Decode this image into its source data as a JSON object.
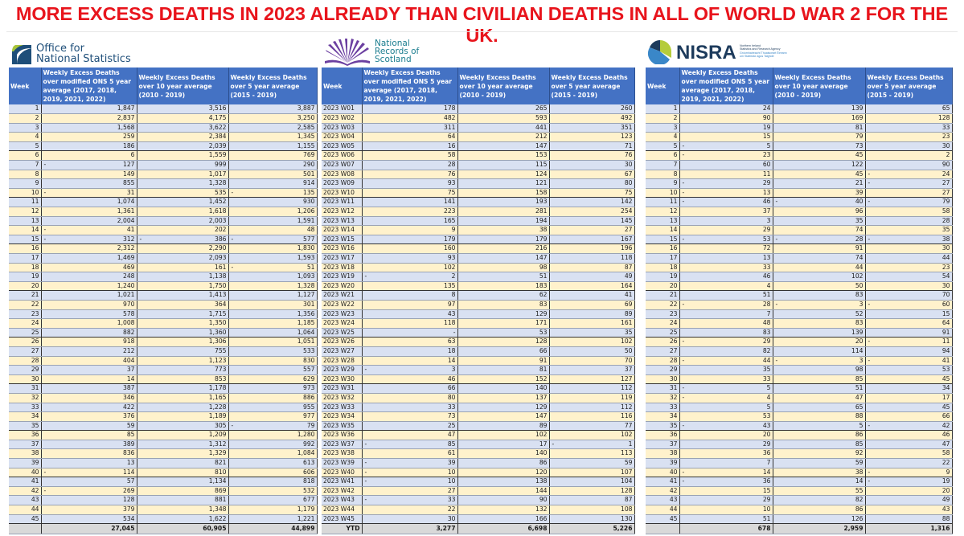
{
  "title": "MORE EXCESS DEATHS IN 2023 ALREADY THAN CIVILIAN DEATHS IN ALL OF WORLD WAR 2 FOR THE UK.",
  "colors": {
    "title": "#e8141c",
    "header_bg": "#4472c4",
    "row_odd": "#d9e1f2",
    "row_even": "#fff2cc",
    "total_bg": "#d9d9d9"
  },
  "tables": [
    {
      "id": "ons",
      "logo": {
        "line1": "Office for",
        "line2": "National Statistics",
        "icon": "ons-logo-icon"
      },
      "headers": [
        "Week",
        "Weekly Excess Deaths over modified ONS 5 year average (2017, 2018, 2019, 2021, 2022)",
        "Weekly Excess Deaths over 10 year average (2010 - 2019)",
        "Weekly Excess Deaths over 5 year average (2015 - 2019)"
      ],
      "rows": [
        [
          "1",
          "1,847",
          "3,516",
          "3,887"
        ],
        [
          "2",
          "2,837",
          "4,175",
          "3,250"
        ],
        [
          "3",
          "1,568",
          "3,622",
          "2,585"
        ],
        [
          "4",
          "259",
          "2,384",
          "1,345"
        ],
        [
          "5",
          "186",
          "2,039",
          "1,155"
        ],
        [
          "6",
          "6",
          "1,559",
          "769"
        ],
        [
          "7",
          "-127",
          "999",
          "290"
        ],
        [
          "8",
          "149",
          "1,017",
          "501"
        ],
        [
          "9",
          "855",
          "1,328",
          "914"
        ],
        [
          "10",
          "-31",
          "535",
          "-135"
        ],
        [
          "11",
          "1,074",
          "1,452",
          "930"
        ],
        [
          "12",
          "1,361",
          "1,618",
          "1,206"
        ],
        [
          "13",
          "2,004",
          "2,003",
          "1,591"
        ],
        [
          "14",
          "-41",
          "202",
          "48"
        ],
        [
          "15",
          "-312",
          "-386",
          "-577"
        ],
        [
          "16",
          "2,312",
          "2,290",
          "1,830"
        ],
        [
          "17",
          "1,469",
          "2,093",
          "1,593"
        ],
        [
          "18",
          "469",
          "161",
          "-51"
        ],
        [
          "19",
          "248",
          "1,138",
          "1,093"
        ],
        [
          "20",
          "1,240",
          "1,750",
          "1,328"
        ],
        [
          "21",
          "1,021",
          "1,413",
          "1,127"
        ],
        [
          "22",
          "970",
          "364",
          "301"
        ],
        [
          "23",
          "578",
          "1,715",
          "1,356"
        ],
        [
          "24",
          "1,008",
          "1,350",
          "1,185"
        ],
        [
          "25",
          "882",
          "1,360",
          "1,064"
        ],
        [
          "26",
          "918",
          "1,306",
          "1,051"
        ],
        [
          "27",
          "212",
          "755",
          "533"
        ],
        [
          "28",
          "404",
          "1,123",
          "830"
        ],
        [
          "29",
          "37",
          "773",
          "557"
        ],
        [
          "30",
          "14",
          "853",
          "629"
        ],
        [
          "31",
          "387",
          "1,178",
          "973"
        ],
        [
          "32",
          "346",
          "1,165",
          "886"
        ],
        [
          "33",
          "422",
          "1,228",
          "955"
        ],
        [
          "34",
          "376",
          "1,189",
          "977"
        ],
        [
          "35",
          "59",
          "305",
          "-79"
        ],
        [
          "36",
          "85",
          "1,209",
          "1,280"
        ],
        [
          "37",
          "389",
          "1,312",
          "992"
        ],
        [
          "38",
          "836",
          "1,329",
          "1,084"
        ],
        [
          "39",
          "13",
          "821",
          "613"
        ],
        [
          "40",
          "-114",
          "810",
          "606"
        ],
        [
          "41",
          "57",
          "1,134",
          "818"
        ],
        [
          "42",
          "-269",
          "869",
          "532"
        ],
        [
          "43",
          "128",
          "881",
          "677"
        ],
        [
          "44",
          "379",
          "1,348",
          "1,179"
        ],
        [
          "45",
          "534",
          "1,622",
          "1,221"
        ]
      ],
      "total": [
        "",
        "27,045",
        "60,905",
        "44,899"
      ]
    },
    {
      "id": "nrs",
      "logo": {
        "line1": "National",
        "line2": "Records of",
        "line3": "Scotland",
        "icon": "nrs-logo-icon"
      },
      "headers": [
        "Week",
        "Weekly Excess Deaths over modified ONS 5 year average (2017, 2018, 2019, 2021, 2022)",
        "Weekly Excess Deaths over 10 year average (2010 - 2019)",
        "Weekly Excess Deaths over 5 year average (2015 - 2019)"
      ],
      "rows": [
        [
          "2023 W01",
          "178",
          "265",
          "260"
        ],
        [
          "2023 W02",
          "482",
          "593",
          "492"
        ],
        [
          "2023 W03",
          "311",
          "441",
          "351"
        ],
        [
          "2023 W04",
          "64",
          "212",
          "123"
        ],
        [
          "2023 W05",
          "16",
          "147",
          "71"
        ],
        [
          "2023 W06",
          "58",
          "153",
          "76"
        ],
        [
          "2023 W07",
          "28",
          "115",
          "30"
        ],
        [
          "2023 W08",
          "76",
          "124",
          "67"
        ],
        [
          "2023 W09",
          "93",
          "121",
          "80"
        ],
        [
          "2023 W10",
          "75",
          "158",
          "75"
        ],
        [
          "2023 W11",
          "141",
          "193",
          "142"
        ],
        [
          "2023 W12",
          "223",
          "281",
          "254"
        ],
        [
          "2023 W13",
          "165",
          "194",
          "145"
        ],
        [
          "2023 W14",
          "9",
          "38",
          "27"
        ],
        [
          "2023 W15",
          "179",
          "179",
          "167"
        ],
        [
          "2023 W16",
          "160",
          "216",
          "196"
        ],
        [
          "2023 W17",
          "93",
          "147",
          "118"
        ],
        [
          "2023 W18",
          "102",
          "98",
          "87"
        ],
        [
          "2023 W19",
          "-2",
          "51",
          "49"
        ],
        [
          "2023 W20",
          "135",
          "183",
          "164"
        ],
        [
          "2023 W21",
          "8",
          "62",
          "41"
        ],
        [
          "2023 W22",
          "97",
          "83",
          "69"
        ],
        [
          "2023 W23",
          "43",
          "129",
          "89"
        ],
        [
          "2023 W24",
          "118",
          "171",
          "161"
        ],
        [
          "2023 W25",
          "-",
          "53",
          "35"
        ],
        [
          "2023 W26",
          "63",
          "128",
          "102"
        ],
        [
          "2023 W27",
          "18",
          "66",
          "50"
        ],
        [
          "2023 W28",
          "14",
          "91",
          "70"
        ],
        [
          "2023 W29",
          "-3",
          "81",
          "37"
        ],
        [
          "2023 W30",
          "46",
          "152",
          "127"
        ],
        [
          "2023 W31",
          "66",
          "140",
          "112"
        ],
        [
          "2023 W32",
          "80",
          "137",
          "119"
        ],
        [
          "2023 W33",
          "33",
          "129",
          "112"
        ],
        [
          "2023 W34",
          "73",
          "147",
          "116"
        ],
        [
          "2023 W35",
          "25",
          "89",
          "77"
        ],
        [
          "2023 W36",
          "47",
          "102",
          "102"
        ],
        [
          "2023 W37",
          "-85",
          "17",
          "-1"
        ],
        [
          "2023 W38",
          "61",
          "140",
          "113"
        ],
        [
          "2023 W39",
          "-39",
          "86",
          "59"
        ],
        [
          "2023 W40",
          "-10",
          "120",
          "107"
        ],
        [
          "2023 W41",
          "-10",
          "138",
          "104"
        ],
        [
          "2023 W42",
          "27",
          "144",
          "128"
        ],
        [
          "2023 W43",
          "-33",
          "90",
          "87"
        ],
        [
          "2023 W44",
          "22",
          "132",
          "108"
        ],
        [
          "2023 W45",
          "30",
          "166",
          "130"
        ]
      ],
      "total": [
        "YTD",
        "3,277",
        "6,698",
        "5,226"
      ]
    },
    {
      "id": "nisra",
      "logo": {
        "wordmark": "NISRA",
        "sub1": "Northern Ireland",
        "sub2": "Statistics and Research Agency",
        "sub3": "Gníomhaireacht Thuaisceart Éireann",
        "sub4": "um Staitisticí agus Taighde",
        "icon": "nisra-logo-icon"
      },
      "headers": [
        "Week",
        "Weekly Excess Deaths over modified ONS 5 year average (2017, 2018, 2019, 2021, 2022)",
        "Weekly Excess Deaths over 10 year average (2010 - 2019)",
        "Weekly Excess Deaths over 5 year average (2015 - 2019)"
      ],
      "rows": [
        [
          "1",
          "24",
          "139",
          "65"
        ],
        [
          "2",
          "90",
          "169",
          "128"
        ],
        [
          "3",
          "19",
          "81",
          "33"
        ],
        [
          "4",
          "15",
          "79",
          "23"
        ],
        [
          "5",
          "-5",
          "73",
          "30"
        ],
        [
          "6",
          "-23",
          "45",
          "2"
        ],
        [
          "7",
          "60",
          "122",
          "90"
        ],
        [
          "8",
          "11",
          "45",
          "-24"
        ],
        [
          "9",
          "-29",
          "21",
          "-27"
        ],
        [
          "10",
          "-13",
          "39",
          "27"
        ],
        [
          "11",
          "-46",
          "-40",
          "-79"
        ],
        [
          "12",
          "37",
          "96",
          "58"
        ],
        [
          "13",
          "3",
          "35",
          "28"
        ],
        [
          "14",
          "29",
          "74",
          "35"
        ],
        [
          "15",
          "-53",
          "-28",
          "-38"
        ],
        [
          "16",
          "72",
          "91",
          "30"
        ],
        [
          "17",
          "13",
          "74",
          "44"
        ],
        [
          "18",
          "33",
          "44",
          "23"
        ],
        [
          "19",
          "46",
          "102",
          "54"
        ],
        [
          "20",
          "4",
          "50",
          "30"
        ],
        [
          "21",
          "51",
          "83",
          "70"
        ],
        [
          "22",
          "-28",
          "-3",
          "-60"
        ],
        [
          "23",
          "7",
          "52",
          "15"
        ],
        [
          "24",
          "48",
          "83",
          "64"
        ],
        [
          "25",
          "83",
          "139",
          "91"
        ],
        [
          "26",
          "-29",
          "20",
          "-11"
        ],
        [
          "27",
          "82",
          "114",
          "94"
        ],
        [
          "28",
          "-44",
          "-3",
          "-41"
        ],
        [
          "29",
          "35",
          "98",
          "53"
        ],
        [
          "30",
          "33",
          "85",
          "45"
        ],
        [
          "31",
          "-5",
          "51",
          "34"
        ],
        [
          "32",
          "-4",
          "47",
          "17"
        ],
        [
          "33",
          "5",
          "65",
          "45"
        ],
        [
          "34",
          "53",
          "88",
          "66"
        ],
        [
          "35",
          "-43",
          "5",
          "-42"
        ],
        [
          "36",
          "20",
          "86",
          "46"
        ],
        [
          "37",
          "29",
          "85",
          "47"
        ],
        [
          "38",
          "36",
          "92",
          "58"
        ],
        [
          "39",
          "7",
          "59",
          "22"
        ],
        [
          "40",
          "-14",
          "38",
          "-9"
        ],
        [
          "41",
          "-36",
          "14",
          "-19"
        ],
        [
          "42",
          "15",
          "55",
          "20"
        ],
        [
          "43",
          "29",
          "82",
          "49"
        ],
        [
          "44",
          "10",
          "86",
          "43"
        ],
        [
          "45",
          "51",
          "126",
          "88"
        ]
      ],
      "total": [
        "",
        "678",
        "2,959",
        "1,316"
      ]
    }
  ]
}
